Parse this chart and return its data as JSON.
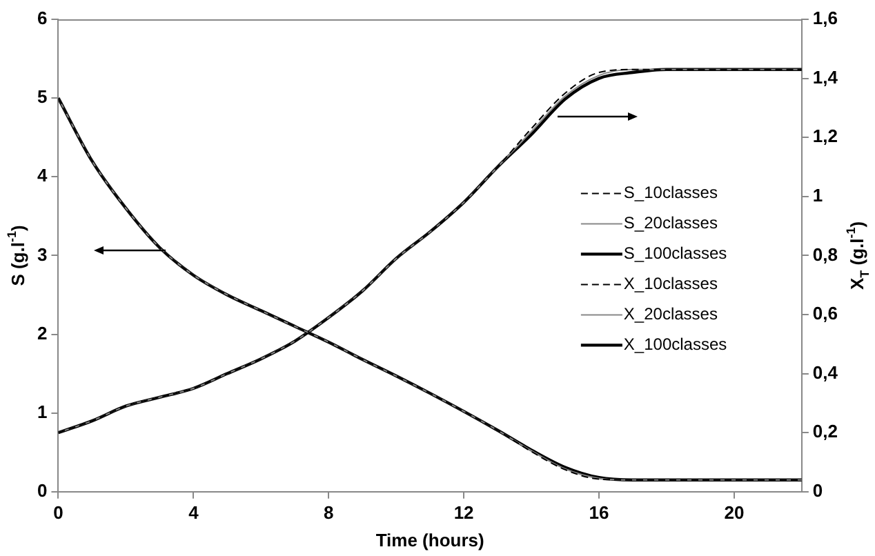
{
  "chart_data": {
    "type": "line",
    "xlabel": "Time (hours)",
    "ylabel": "S (g.l$^{-1}$)",
    "y2label": "X$_{T}$ (g.l$^{-1}$)",
    "x": [
      0,
      1,
      2,
      3,
      4,
      5,
      6,
      7,
      8,
      9,
      10,
      11,
      12,
      13,
      14,
      15,
      16,
      17,
      18,
      22
    ],
    "series": [
      {
        "name": "S_10classes",
        "color": "#000000",
        "line_style": "dashed",
        "axis": "y",
        "values": [
          5,
          4.2,
          3.6,
          3.1,
          2.75,
          2.5,
          2.3,
          2.1,
          1.9,
          1.68,
          1.47,
          1.25,
          1.02,
          0.78,
          0.51,
          0.28,
          0.16,
          0.15,
          0.15,
          0.15
        ]
      },
      {
        "name": "S_20classes",
        "color": "#888888",
        "line_style": "solid",
        "axis": "y",
        "values": [
          5,
          4.2,
          3.6,
          3.1,
          2.75,
          2.5,
          2.3,
          2.1,
          1.9,
          1.68,
          1.47,
          1.25,
          1.02,
          0.78,
          0.52,
          0.29,
          0.17,
          0.15,
          0.15,
          0.15
        ]
      },
      {
        "name": "S_100classes",
        "color": "#000000",
        "line_style": "solid",
        "axis": "y",
        "values": [
          5,
          4.2,
          3.6,
          3.1,
          2.75,
          2.5,
          2.3,
          2.1,
          1.9,
          1.68,
          1.47,
          1.25,
          1.02,
          0.78,
          0.53,
          0.31,
          0.18,
          0.15,
          0.15,
          0.15
        ]
      },
      {
        "name": "X_10classes",
        "color": "#000000",
        "line_style": "dashed",
        "axis": "y2",
        "values": [
          0.2,
          0.24,
          0.29,
          0.32,
          0.35,
          0.4,
          0.45,
          0.51,
          0.59,
          0.68,
          0.79,
          0.88,
          0.98,
          1.1,
          1.23,
          1.35,
          1.42,
          1.43,
          1.43,
          1.43
        ]
      },
      {
        "name": "X_20classes",
        "color": "#888888",
        "line_style": "solid",
        "axis": "y2",
        "values": [
          0.2,
          0.24,
          0.29,
          0.32,
          0.35,
          0.4,
          0.45,
          0.51,
          0.59,
          0.68,
          0.79,
          0.88,
          0.98,
          1.1,
          1.22,
          1.34,
          1.41,
          1.43,
          1.43,
          1.43
        ]
      },
      {
        "name": "X_100classes",
        "color": "#000000",
        "line_style": "solid",
        "axis": "y2",
        "values": [
          0.2,
          0.24,
          0.29,
          0.32,
          0.35,
          0.4,
          0.45,
          0.51,
          0.59,
          0.68,
          0.79,
          0.88,
          0.98,
          1.1,
          1.21,
          1.33,
          1.4,
          1.42,
          1.43,
          1.43
        ]
      }
    ],
    "xlim": [
      0,
      22
    ],
    "xticks": [
      0,
      4,
      8,
      12,
      16,
      20
    ],
    "ylim": [
      0,
      6
    ],
    "yticks": [
      0,
      1,
      2,
      3,
      4,
      5,
      6
    ],
    "y2lim": [
      0,
      1.6
    ],
    "y2ticks": [
      0,
      {
        "value": 0.2,
        "label": "0,2"
      },
      {
        "value": 0.4,
        "label": "0,4"
      },
      {
        "value": 0.6,
        "label": "0,6"
      },
      {
        "value": 0.8,
        "label": "0,8"
      },
      1,
      {
        "value": 1.2,
        "label": "1,2"
      },
      {
        "value": 1.4,
        "label": "1,4"
      },
      {
        "value": 1.6,
        "label": "1,6"
      }
    ],
    "grid": false,
    "legend": "right",
    "marker": "none"
  }
}
